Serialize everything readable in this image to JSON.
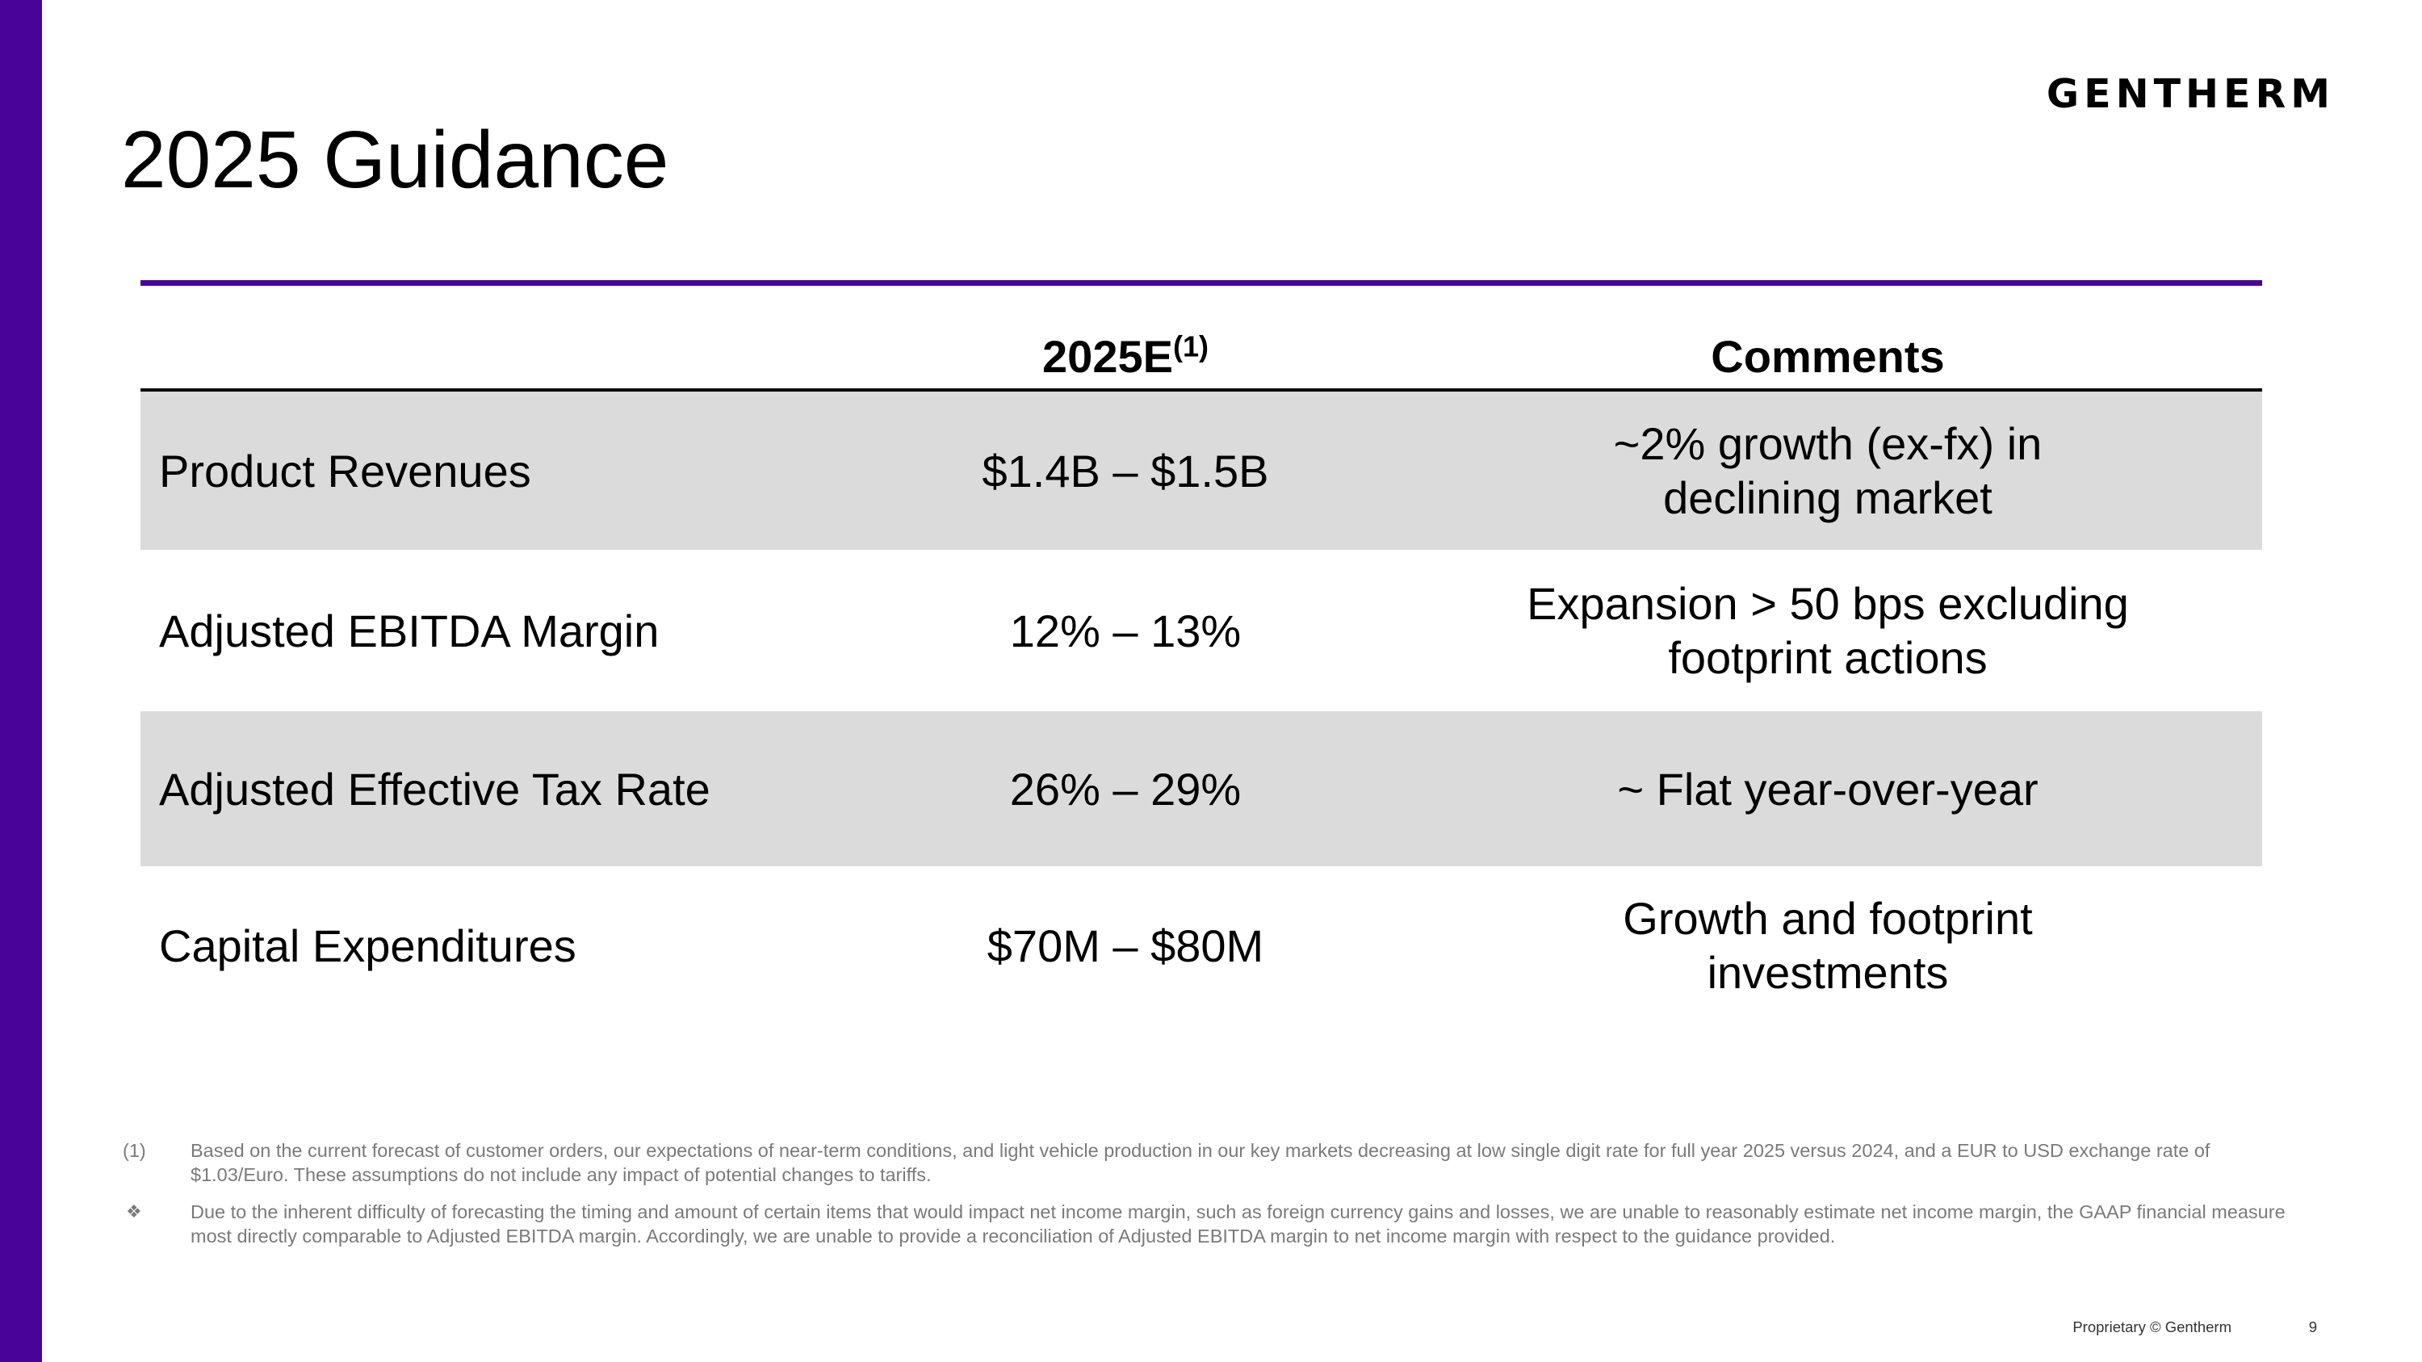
{
  "brand": {
    "logo_text": "GENTHERM",
    "accent_color": "#4a0399",
    "row_shade_color": "#dcdbdc"
  },
  "slide": {
    "title": "2025 Guidance",
    "page_number": "9",
    "footer_text": "Proprietary © Gentherm"
  },
  "table": {
    "headers": {
      "col1": "",
      "col2": "2025E",
      "col2_sup": "(1)",
      "col3": "Comments"
    },
    "rows": [
      {
        "metric": "Product Revenues",
        "value": "$1.4B – $1.5B",
        "comment_line1": "~2% growth (ex-fx) in",
        "comment_line2": "declining market",
        "shaded": true
      },
      {
        "metric": "Adjusted EBITDA Margin",
        "value": "12% – 13%",
        "comment_line1": "Expansion > 50 bps excluding",
        "comment_line2": "footprint actions",
        "shaded": false
      },
      {
        "metric": "Adjusted Effective Tax Rate",
        "value": "26% – 29%",
        "comment_line1": "~ Flat year-over-year",
        "comment_line2": "",
        "shaded": true
      },
      {
        "metric": "Capital Expenditures",
        "value": "$70M – $80M",
        "comment_line1": "Growth and footprint",
        "comment_line2": "investments",
        "shaded": false
      }
    ]
  },
  "footnotes": [
    {
      "marker": "(1)",
      "text": "Based on the current forecast of customer orders, our expectations of near-term conditions, and light vehicle production in our key markets decreasing at low single digit rate for full year 2025 versus 2024, and a EUR to USD exchange rate of $1.03/Euro. These assumptions do not include any impact of potential changes to tariffs."
    },
    {
      "marker": "❖",
      "text": "Due to the inherent difficulty of forecasting the timing and amount of certain items that would impact net income margin, such as foreign currency gains and losses, we are unable to reasonably estimate net income margin, the GAAP financial measure most directly comparable to Adjusted EBITDA margin. Accordingly, we are unable to provide a reconciliation of Adjusted EBITDA margin to net income margin with respect to the guidance provided."
    }
  ]
}
